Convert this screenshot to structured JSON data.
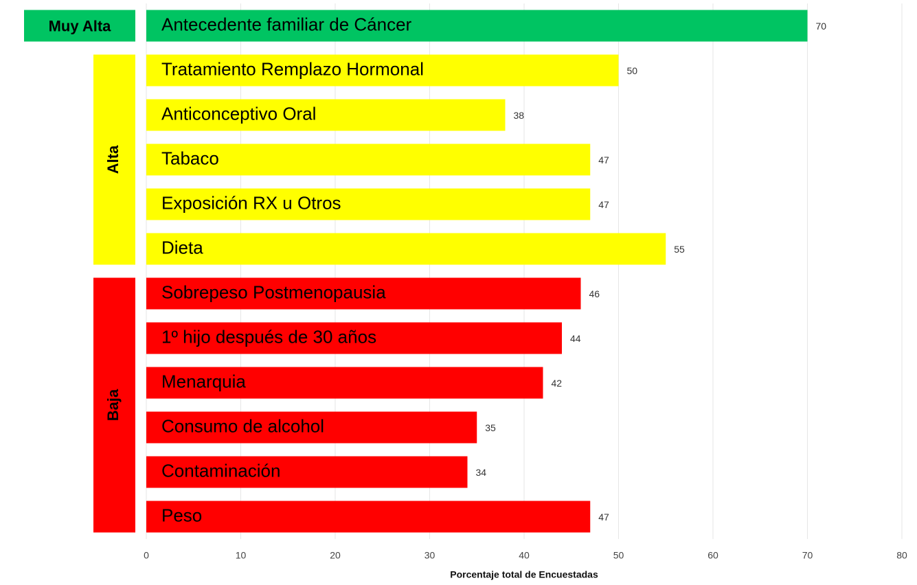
{
  "chart_data": {
    "type": "bar",
    "orientation": "horizontal",
    "xlabel": "Porcentaje total de Encuestadas",
    "series": [
      {
        "name": "Muy Alta",
        "color": "#00c462",
        "categories": [
          "Antecedente familiar de Cáncer"
        ],
        "values": [
          70
        ]
      },
      {
        "name": "Alta",
        "color": "#ffff00",
        "categories": [
          "Tratamiento Remplazo Hormonal",
          "Anticonceptivo Oral",
          "Tabaco",
          "Exposición RX u Otros",
          "Dieta"
        ],
        "values": [
          50,
          38,
          47,
          47,
          55
        ]
      },
      {
        "name": "Baja",
        "color": "#ff0000",
        "categories": [
          "Sobrepeso Postmenopausia",
          "1º hijo después de 30 años",
          "Menarquia",
          "Consumo de alcohol",
          "Contaminación",
          "Peso"
        ],
        "values": [
          46,
          44,
          42,
          35,
          34,
          47
        ]
      }
    ],
    "xlim": [
      0,
      80
    ],
    "xticks": [
      0,
      10,
      20,
      30,
      40,
      50,
      60,
      70,
      80
    ],
    "grid": true
  }
}
